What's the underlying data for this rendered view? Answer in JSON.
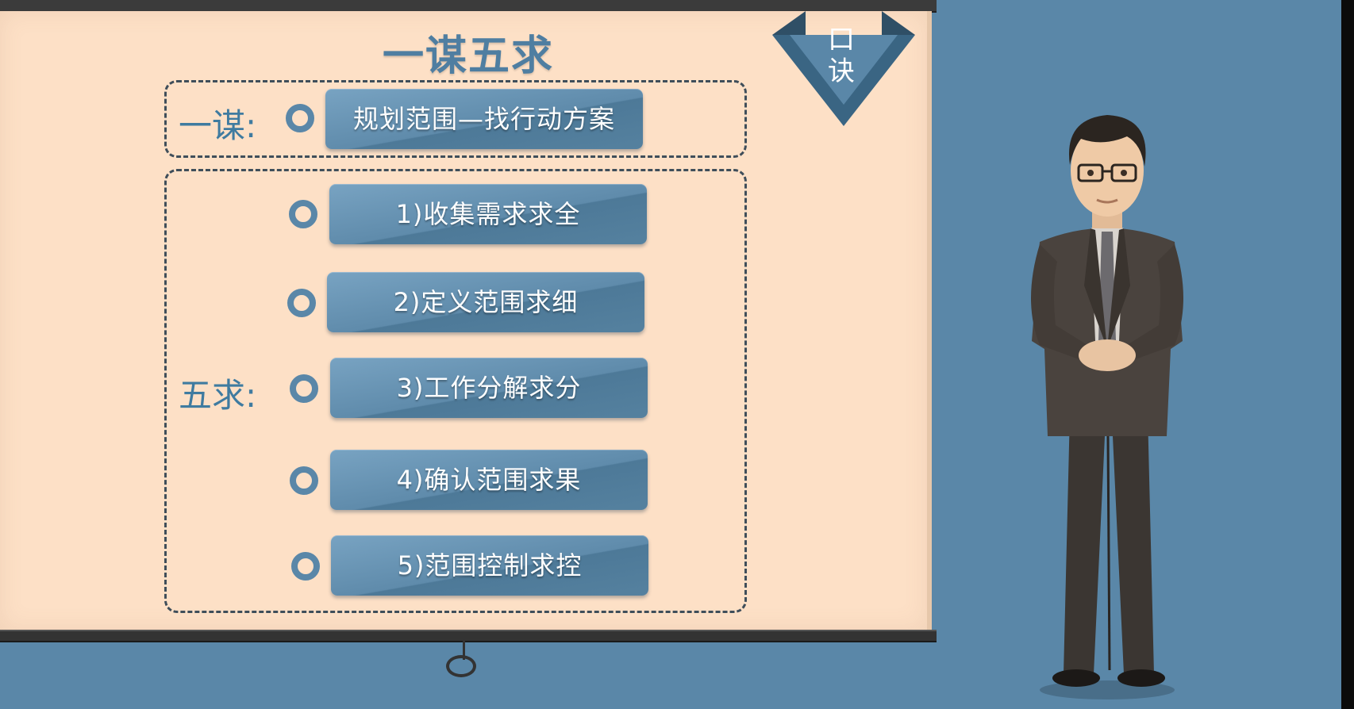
{
  "title": "一谋五求",
  "pennant_text": "口诀",
  "one_plan": {
    "label": "一谋:",
    "item": "规划范围—找行动方案"
  },
  "five_seek": {
    "label": "五求:",
    "items": [
      "1)收集需求求全",
      "2)定义范围求细",
      "3)工作分解求分",
      "4)确认范围求果",
      "5)范围控制求控"
    ]
  },
  "colors": {
    "background": "#5a87a8",
    "screen": "#fde0c6",
    "accent": "#4f7ea1",
    "button": "#5f8bab"
  },
  "icons": [
    "circle-bullet-icon",
    "pennant-icon",
    "presenter-figure"
  ]
}
